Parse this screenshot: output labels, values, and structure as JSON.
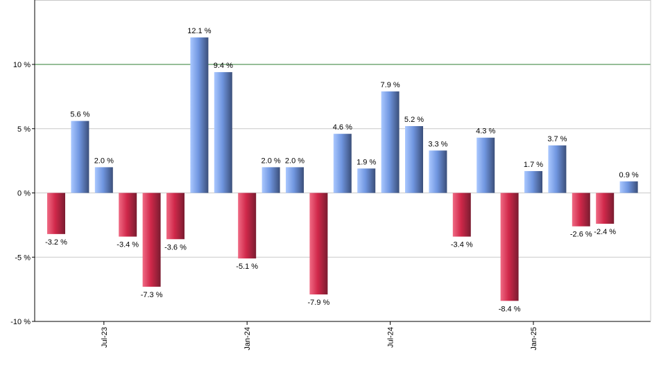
{
  "chart_data": {
    "type": "bar",
    "title": "",
    "xlabel": "",
    "ylabel": "",
    "ylim": [
      -10,
      15
    ],
    "y_ticks": [
      -10,
      -5,
      0,
      5,
      10
    ],
    "y_tick_labels": [
      "-10 %",
      "-5 %",
      "0 %",
      "5 %",
      "10 %"
    ],
    "reference_line": {
      "value": 10,
      "color": "#2e7d32"
    },
    "grid": true,
    "x_ticks": [
      {
        "label": "Jul-23",
        "index": 2
      },
      {
        "label": "Jan-24",
        "index": 8
      },
      {
        "label": "Jul-24",
        "index": 14
      },
      {
        "label": "Jan-25",
        "index": 20
      }
    ],
    "values": [
      -3.2,
      5.6,
      2.0,
      -3.4,
      -7.3,
      -3.6,
      12.1,
      9.4,
      -5.1,
      2.0,
      2.0,
      -7.9,
      4.6,
      1.9,
      7.9,
      5.2,
      3.3,
      -3.4,
      4.3,
      -8.4,
      1.7,
      3.7,
      -2.6,
      -2.4,
      0.9
    ],
    "value_labels": [
      "-3.2 %",
      "5.6 %",
      "2.0 %",
      "-3.4 %",
      "-7.3 %",
      "-3.6 %",
      "12.1 %",
      "9.4 %",
      "-5.1 %",
      "2.0 %",
      "2.0 %",
      "-7.9 %",
      "4.6 %",
      "1.9 %",
      "7.9 %",
      "5.2 %",
      "3.3 %",
      "-3.4 %",
      "4.3 %",
      "-8.4 %",
      "1.7 %",
      "3.7 %",
      "-2.6 %",
      "-2.4 %",
      "0.9 %"
    ],
    "colors": {
      "positive_light": "#aac8ff",
      "positive_mid": "#7096e0",
      "positive_dark": "#3b4f7a",
      "negative_light": "#f06a84",
      "negative_mid": "#d0284a",
      "negative_dark": "#7a1c30",
      "grid": "#c8c8c8",
      "axis": "#000000"
    }
  }
}
